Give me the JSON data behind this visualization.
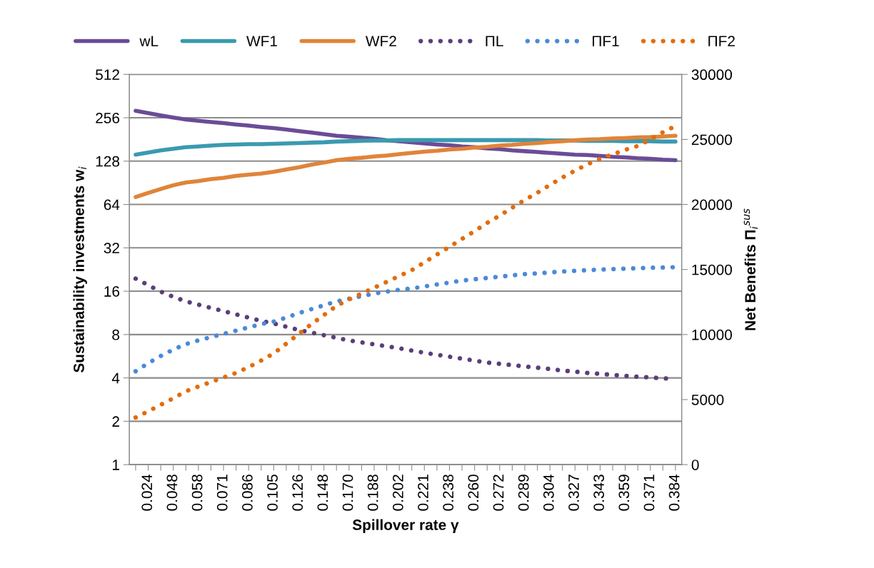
{
  "chart_data": {
    "type": "line",
    "xlabel": "Spillover rate γ",
    "ylabel": "Sustainability investments w$_{i}$",
    "y2label": "Net Benefits Π$_{i}$$^{sus}$",
    "categories": [
      null,
      "0.024",
      null,
      "0.048",
      null,
      "0.058",
      null,
      "0.071",
      null,
      "0.086",
      null,
      "0.105",
      null,
      "0.126",
      null,
      "0.148",
      null,
      "0.170",
      null,
      "0.188",
      null,
      "0.202",
      null,
      "0.221",
      null,
      "0.238",
      null,
      "0.260",
      null,
      "0.272",
      null,
      "0.289",
      null,
      "0.304",
      null,
      "0.327",
      null,
      "0.343",
      null,
      "0.359",
      null,
      "0.371",
      null,
      "0.384"
    ],
    "log": "y",
    "ylim": [
      1,
      512
    ],
    "yticks": [
      1,
      2,
      4,
      8,
      16,
      32,
      64,
      128,
      256,
      512
    ],
    "y2lim": [
      0,
      30000
    ],
    "y2ticks": [
      0,
      5000,
      10000,
      15000,
      20000,
      25000,
      30000
    ],
    "grid": "y",
    "legend": "top",
    "series": [
      {
        "name": "wL",
        "color": "#6b4c96",
        "line_style": "solid",
        "values": [
          286,
          276,
          266,
          257,
          249,
          244,
          239,
          235,
          230,
          226,
          221,
          217,
          212,
          207,
          202,
          197,
          192,
          189,
          186,
          183,
          179,
          176,
          173,
          170,
          167,
          165,
          162,
          160,
          157,
          155,
          152,
          150,
          148,
          146,
          144,
          142,
          141,
          139,
          137,
          136,
          134,
          133,
          131,
          130
        ]
      },
      {
        "name": "WF1",
        "color": "#3a9ab0",
        "line_style": "solid",
        "values": [
          142,
          147,
          152,
          156,
          160,
          162,
          164,
          166,
          167,
          168,
          168,
          169,
          170,
          171,
          172,
          173,
          175,
          176,
          177,
          178,
          178,
          179,
          179,
          179,
          179,
          179,
          179,
          179,
          179,
          179,
          179,
          179,
          179,
          178,
          178,
          178,
          177,
          177,
          177,
          176,
          176,
          176,
          175,
          175
        ]
      },
      {
        "name": "WF2",
        "color": "#e0843a",
        "line_style": "solid",
        "values": [
          72,
          77,
          82,
          87,
          91,
          93,
          96,
          98,
          101,
          103,
          105,
          108,
          112,
          116,
          121,
          125,
          130,
          133,
          135,
          138,
          140,
          143,
          146,
          149,
          151,
          154,
          156,
          159,
          161,
          164,
          166,
          169,
          171,
          174,
          176,
          179,
          181,
          182,
          184,
          185,
          187,
          188,
          190,
          192
        ]
      },
      {
        "name": "ΠL",
        "color": "#5b3e7a",
        "line_style": "dotted",
        "axis": "y2",
        "values": [
          14300,
          13800,
          13300,
          12900,
          12550,
          12300,
          12050,
          11800,
          11550,
          11300,
          11050,
          10850,
          10600,
          10350,
          10150,
          9950,
          9750,
          9550,
          9400,
          9250,
          9100,
          8950,
          8770,
          8600,
          8450,
          8300,
          8150,
          8000,
          7850,
          7750,
          7650,
          7550,
          7450,
          7350,
          7230,
          7150,
          7050,
          6980,
          6900,
          6830,
          6760,
          6700,
          6640,
          6580
        ]
      },
      {
        "name": "ΠF1",
        "color": "#4a8ad8",
        "line_style": "dotted",
        "axis": "y2",
        "values": [
          7180,
          7800,
          8350,
          8850,
          9260,
          9550,
          9800,
          10050,
          10300,
          10550,
          10800,
          11000,
          11300,
          11650,
          11950,
          12250,
          12550,
          12750,
          12950,
          13150,
          13300,
          13450,
          13540,
          13700,
          13850,
          14000,
          14150,
          14250,
          14350,
          14450,
          14550,
          14650,
          14700,
          14780,
          14850,
          14900,
          14950,
          14990,
          15030,
          15070,
          15100,
          15130,
          15160,
          15180
        ]
      },
      {
        "name": "ΠF2",
        "color": "#e46c0a",
        "line_style": "dotted",
        "axis": "y2",
        "values": [
          3620,
          4100,
          4600,
          5100,
          5640,
          6000,
          6350,
          6700,
          7050,
          7500,
          8000,
          8550,
          9300,
          10050,
          10800,
          11500,
          12200,
          12700,
          13150,
          13600,
          14050,
          14500,
          14950,
          15550,
          16150,
          16750,
          17350,
          17950,
          18580,
          19150,
          19750,
          20350,
          20900,
          21500,
          22080,
          22600,
          23100,
          23500,
          23850,
          24200,
          24500,
          25000,
          25550,
          26030
        ]
      }
    ]
  }
}
